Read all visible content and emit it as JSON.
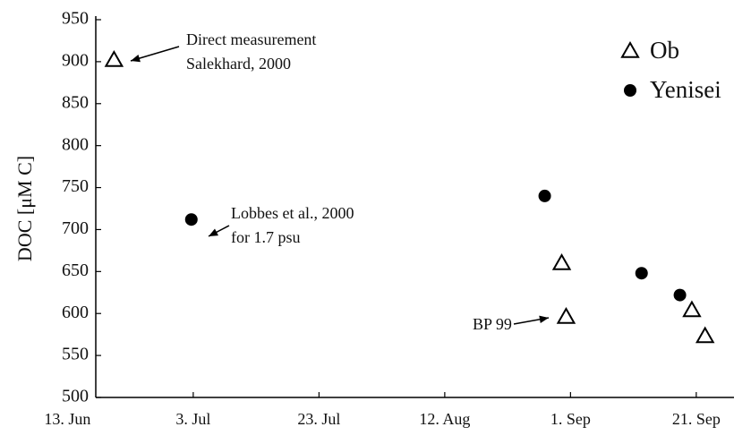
{
  "chart_data": {
    "type": "scatter",
    "y_label": "DOC [μM C]",
    "xticks": [
      {
        "value": 0,
        "label": "13. Jun"
      },
      {
        "value": 20,
        "label": "3. Jul"
      },
      {
        "value": 40,
        "label": "23. Jul"
      },
      {
        "value": 60,
        "label": "12. Aug"
      },
      {
        "value": 80,
        "label": "1. Sep"
      },
      {
        "value": 100,
        "label": "21. Sep"
      }
    ],
    "xlim": [
      4.5,
      106
    ],
    "ylim": [
      500,
      950
    ],
    "yticks": [
      500,
      550,
      600,
      650,
      700,
      750,
      800,
      850,
      900,
      950
    ],
    "series": [
      {
        "name": "Ob",
        "color": "#000000",
        "marker": "triangle-open",
        "x": [
          7.4,
          78.6,
          79.3,
          99.3,
          101.4
        ],
        "values": [
          902,
          660,
          596,
          604,
          573
        ]
      },
      {
        "name": "Yenisei",
        "color": "#000000",
        "marker": "circle",
        "x": [
          19.7,
          75.9,
          91.3,
          97.4
        ],
        "values": [
          712,
          740,
          648,
          622
        ]
      }
    ],
    "annotations": [
      [
        "Direct measurement",
        "Salekhard, 2000"
      ],
      [
        "Lobbes et al., 2000",
        "for 1.7 psu"
      ],
      [
        "BP 99"
      ]
    ]
  }
}
